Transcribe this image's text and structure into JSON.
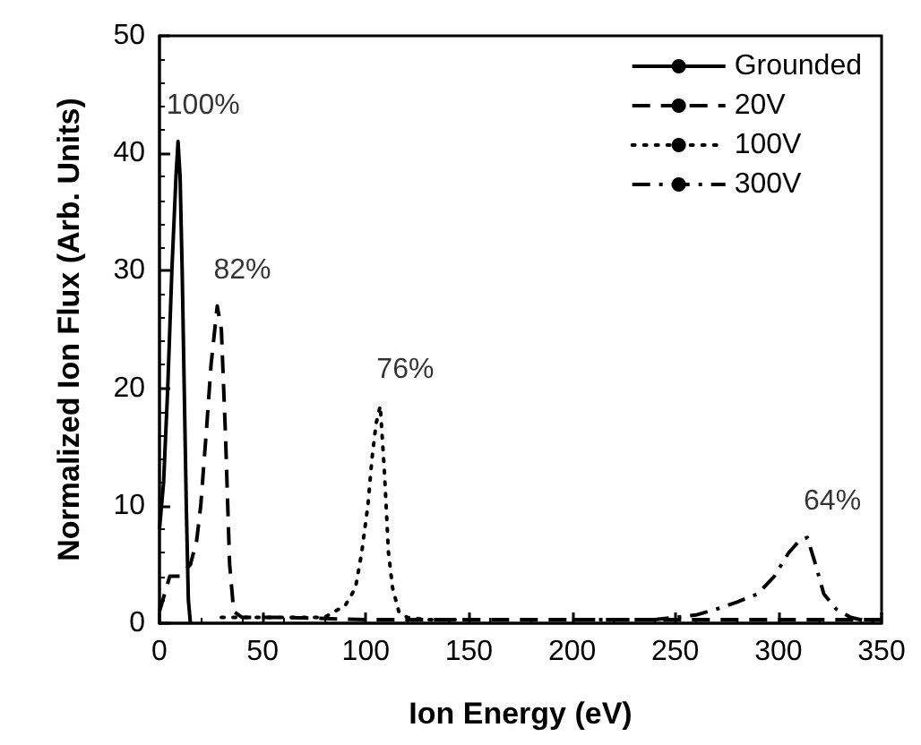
{
  "chart_data": {
    "type": "line",
    "xlabel": "Ion Energy (eV)",
    "ylabel": "Normalized Ion Flux (Arb. Units)",
    "xlim": [
      0,
      350
    ],
    "xticks": [
      0,
      50,
      100,
      150,
      200,
      250,
      300,
      350
    ],
    "ylim": [
      0,
      50
    ],
    "yticks": [
      0,
      10,
      20,
      30,
      40,
      50
    ],
    "grid": false,
    "legend": "top right",
    "marker": "none",
    "series": [
      {
        "name": "Grounded",
        "color": "#000000",
        "line_style": "solid",
        "x": [
          0,
          2,
          4,
          6,
          8,
          9,
          10,
          11,
          12,
          13,
          14,
          15
        ],
        "values": [
          8,
          12,
          20,
          30,
          38,
          41,
          38,
          30,
          20,
          10,
          2,
          0
        ]
      },
      {
        "name": "20V",
        "color": "#000000",
        "line_style": "dashed",
        "x": [
          0,
          5,
          10,
          15,
          18,
          20,
          23,
          25,
          28,
          30,
          32,
          34,
          36,
          40,
          60,
          100,
          150,
          200,
          250,
          300,
          350
        ],
        "values": [
          1,
          4,
          4,
          5,
          7,
          10,
          17,
          22,
          27,
          25,
          16,
          5,
          1,
          0.5,
          0.5,
          0.3,
          0.3,
          0.3,
          0.3,
          0.3,
          0.3
        ]
      },
      {
        "name": "100V",
        "color": "#000000",
        "line_style": "dotted",
        "x": [
          30,
          50,
          80,
          90,
          95,
          98,
          101,
          103,
          105,
          107,
          109,
          111,
          113,
          116,
          120,
          130,
          150
        ],
        "values": [
          0.5,
          0.5,
          0.5,
          1.5,
          3,
          6,
          10,
          14,
          17,
          18.5,
          13,
          6,
          3,
          1,
          0.5,
          0.3,
          0.3
        ]
      },
      {
        "name": "300V",
        "color": "#000000",
        "line_style": "dashdot",
        "x": [
          200,
          240,
          260,
          270,
          280,
          290,
          298,
          305,
          310,
          314,
          318,
          322,
          328,
          335,
          342,
          350
        ],
        "values": [
          0.3,
          0.3,
          0.7,
          1.2,
          1.8,
          2.5,
          4,
          6,
          7,
          7.3,
          5,
          2.5,
          1.2,
          0.5,
          0.2,
          0
        ]
      }
    ],
    "annotations": [
      {
        "text": "100%",
        "x": 9,
        "y": 41
      },
      {
        "text": "82%",
        "x": 28,
        "y": 27
      },
      {
        "text": "76%",
        "x": 107,
        "y": 18.5
      },
      {
        "text": "64%",
        "x": 314,
        "y": 7.3
      }
    ]
  }
}
